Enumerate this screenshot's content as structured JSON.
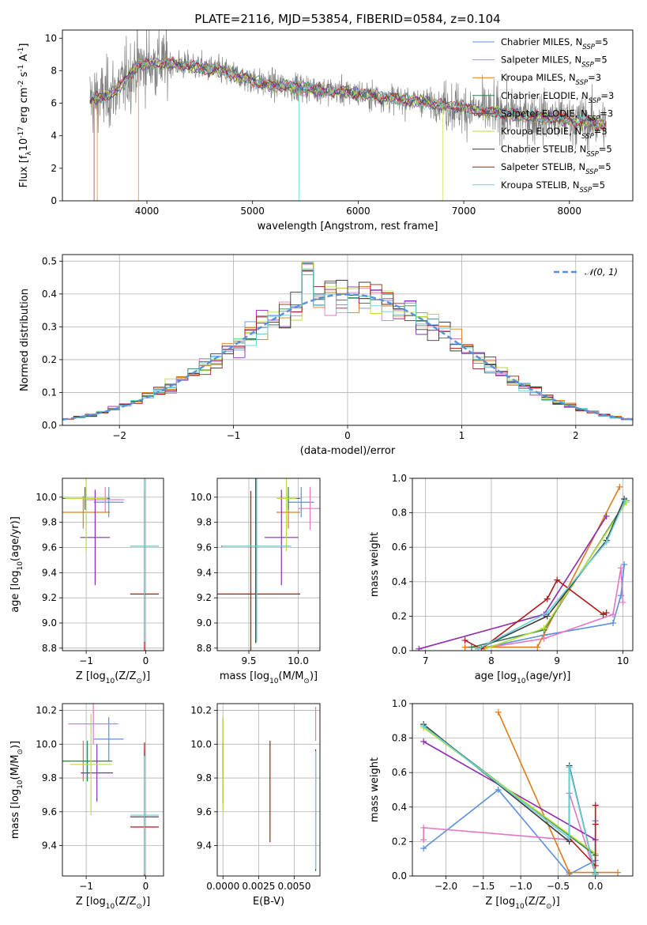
{
  "figure": {
    "title": "PLATE=2116, MJD=53854, FIBERID=0584, z=0.104",
    "series_colors": {
      "Chabrier MILES": "#5b8fde",
      "Salpeter MILES": "#e377c2",
      "Kroupa MILES": "#e07b1a",
      "Chabrier ELODIE": "#2f7d57",
      "Salpeter ELODIE": "#8e2bb0",
      "Kroupa ELODIE": "#b8de3a",
      "Chabrier STELIB": "#3a3a3a",
      "Salpeter STELIB": "#b01818",
      "Kroupa STELIB": "#63d2d8",
      "data": "#808080",
      "normal": "#5b8fde"
    }
  },
  "chart_data": [
    {
      "id": "spectrum",
      "type": "line",
      "xlabel": "wavelength [Angstrom, rest frame]",
      "ylabel": "Flux [f$_\\lambda$10$^{-17}$ erg cm$^{-2}$ s$^{-1}$ A$^{-1}$]",
      "xlim": [
        3200,
        8600
      ],
      "ylim": [
        0,
        10.5
      ],
      "xticks": [
        "4000",
        "5000",
        "6000",
        "7000",
        "8000"
      ],
      "yticks": [
        "0",
        "2",
        "4",
        "6",
        "8",
        "10"
      ],
      "legend": [
        "Chabrier MILES, N_SSP=5",
        "Salpeter MILES, N_SSP=5",
        "Kroupa MILES, N_SSP=3",
        "Chabrier ELODIE, N_SSP=3",
        "Salpeter ELODIE, N_SSP=3",
        "Kroupa ELODIE, N_SSP=3",
        "Chabrier STELIB, N_SSP=5",
        "Salpeter STELIB, N_SSP=5",
        "Kroupa STELIB, N_SSP=5"
      ],
      "legend_loc": "upper-right",
      "continuum": [
        [
          3450,
          6.2
        ],
        [
          3600,
          6.4
        ],
        [
          3750,
          7.0
        ],
        [
          3900,
          8.3
        ],
        [
          4100,
          8.5
        ],
        [
          4400,
          8.3
        ],
        [
          4700,
          8.0
        ],
        [
          4900,
          7.6
        ],
        [
          5100,
          7.2
        ],
        [
          5400,
          7.0
        ],
        [
          5700,
          6.8
        ],
        [
          6000,
          6.6
        ],
        [
          6300,
          6.3
        ],
        [
          6600,
          6.1
        ],
        [
          6900,
          5.8
        ],
        [
          7200,
          5.5
        ],
        [
          7500,
          5.3
        ],
        [
          7800,
          5.1
        ],
        [
          8100,
          4.9
        ],
        [
          8350,
          4.7
        ]
      ]
    },
    {
      "id": "residuals",
      "type": "histogram",
      "xlabel": "(data-model)/error",
      "ylabel": "Normed distribution",
      "xlim": [
        -2.5,
        2.5
      ],
      "ylim": [
        0,
        0.52
      ],
      "xticks": [
        "−2",
        "−1",
        "0",
        "1",
        "2"
      ],
      "yticks": [
        "0.0",
        "0.1",
        "0.2",
        "0.3",
        "0.4",
        "0.5"
      ],
      "bin_width": 0.1,
      "legend": [
        "𝒩(0, 1)"
      ],
      "legend_loc": "upper-right"
    },
    {
      "id": "age-vs-Z",
      "type": "errorbar",
      "xlabel": "Z [log$_{10}$(Z/Z$_\\odot$)]",
      "ylabel": "age  [log$_{10}$(age/yr)]",
      "xlim": [
        -1.4,
        0.3
      ],
      "ylim": [
        8.78,
        10.15
      ],
      "xticks": [
        "−1",
        "0"
      ],
      "yticks": [
        "8.8",
        "9.0",
        "9.2",
        "9.4",
        "9.6",
        "9.8",
        "10.0"
      ],
      "points": [
        {
          "series": "Chabrier MILES",
          "x": -0.62,
          "y": 9.96,
          "xerr": 0.25,
          "yerr": 0.12
        },
        {
          "series": "Salpeter MILES",
          "x": -0.68,
          "y": 9.98,
          "xerr": 0.32,
          "yerr": 0.1
        },
        {
          "series": "Kroupa MILES",
          "x": -1.05,
          "y": 9.88,
          "xerr": 0.45,
          "yerr": 0.13
        },
        {
          "series": "Chabrier ELODIE",
          "x": -1.02,
          "y": 9.99,
          "xerr": 0.42,
          "yerr": 0.09
        },
        {
          "series": "Salpeter ELODIE",
          "x": -0.85,
          "y": 9.68,
          "xerr": 0.25,
          "yerr": 0.38
        },
        {
          "series": "Kroupa ELODIE",
          "x": -1.0,
          "y": 9.99,
          "xerr": 0.35,
          "yerr": 0.42
        },
        {
          "series": "Chabrier STELIB",
          "x": -0.02,
          "y": 9.61,
          "xerr": 0.24,
          "yerr": 0.77
        },
        {
          "series": "Salpeter STELIB",
          "x": -0.02,
          "y": 9.23,
          "xerr": 0.24,
          "yerr": 0.82
        },
        {
          "series": "Kroupa STELIB",
          "x": -0.02,
          "y": 9.61,
          "xerr": 0.24,
          "yerr": 0.76
        }
      ]
    },
    {
      "id": "age-vs-mass",
      "type": "errorbar",
      "xlabel": "mass [log$_{10}$(M/M$_\\odot$)]",
      "ylabel": "",
      "xlim": [
        9.18,
        10.22
      ],
      "ylim": [
        8.78,
        10.15
      ],
      "xticks": [
        "9.5",
        "10.0"
      ],
      "yticks": [
        "8.8",
        "9.0",
        "9.2",
        "9.4",
        "9.6",
        "9.8",
        "10.0"
      ],
      "points": [
        {
          "series": "Chabrier MILES",
          "x": 10.03,
          "y": 9.96,
          "xerr": 0.13,
          "yerr": 0.12
        },
        {
          "series": "Salpeter MILES",
          "x": 10.12,
          "y": 9.91,
          "xerr": 0.12,
          "yerr": 0.17
        },
        {
          "series": "Kroupa MILES",
          "x": 9.9,
          "y": 9.88,
          "xerr": 0.12,
          "yerr": 0.13
        },
        {
          "series": "Chabrier ELODIE",
          "x": 9.9,
          "y": 9.99,
          "xerr": 0.12,
          "yerr": 0.09
        },
        {
          "series": "Salpeter ELODIE",
          "x": 9.83,
          "y": 9.68,
          "xerr": 0.17,
          "yerr": 0.38
        },
        {
          "series": "Kroupa ELODIE",
          "x": 9.88,
          "y": 9.99,
          "xerr": 0.1,
          "yerr": 0.42
        },
        {
          "series": "Chabrier STELIB",
          "x": 9.57,
          "y": 9.61,
          "xerr": 0.35,
          "yerr": 0.77
        },
        {
          "series": "Salpeter STELIB",
          "x": 9.52,
          "y": 9.23,
          "xerr": 0.5,
          "yerr": 0.82
        },
        {
          "series": "Kroupa STELIB",
          "x": 9.58,
          "y": 9.61,
          "xerr": 0.35,
          "yerr": 0.76
        }
      ]
    },
    {
      "id": "weight-vs-age",
      "type": "line",
      "xlabel": "age  [log$_{10}$(age/yr)]",
      "ylabel": "mass weight",
      "xlim": [
        6.8,
        10.15
      ],
      "ylim": [
        0,
        1.0
      ],
      "xticks": [
        "7",
        "8",
        "9",
        "10"
      ],
      "yticks": [
        "0.0",
        "0.2",
        "0.4",
        "0.6",
        "0.8",
        "1.0"
      ],
      "series": [
        {
          "series": "Chabrier MILES",
          "x": [
            7.8,
            8.8,
            9.85,
            9.97,
            10.02
          ],
          "y": [
            0.01,
            0.09,
            0.16,
            0.32,
            0.5
          ]
        },
        {
          "series": "Salpeter MILES",
          "x": [
            7.8,
            8.8,
            9.85,
            9.97,
            10.0
          ],
          "y": [
            0.01,
            0.07,
            0.21,
            0.48,
            0.28
          ]
        },
        {
          "series": "Kroupa MILES",
          "x": [
            7.6,
            8.7,
            9.95
          ],
          "y": [
            0.02,
            0.02,
            0.95
          ]
        },
        {
          "series": "Chabrier ELODIE",
          "x": [
            7.7,
            8.8,
            10.05
          ],
          "y": [
            0.02,
            0.12,
            0.87
          ]
        },
        {
          "series": "Salpeter ELODIE",
          "x": [
            6.9,
            8.8,
            9.75
          ],
          "y": [
            0.01,
            0.21,
            0.78
          ]
        },
        {
          "series": "Kroupa ELODIE",
          "x": [
            7.9,
            8.8,
            10.05
          ],
          "y": [
            0.01,
            0.13,
            0.86
          ]
        },
        {
          "series": "Chabrier STELIB",
          "x": [
            7.8,
            8.85,
            9.75,
            10.02
          ],
          "y": [
            0.01,
            0.2,
            0.64,
            0.88
          ]
        },
        {
          "series": "Salpeter STELIB",
          "x": [
            7.6,
            7.85,
            8.85,
            9.0,
            9.7,
            9.75
          ],
          "y": [
            0.06,
            0.01,
            0.3,
            0.41,
            0.21,
            0.22
          ]
        },
        {
          "series": "Kroupa STELIB",
          "x": [
            7.8,
            8.85,
            9.75,
            10.03
          ],
          "y": [
            0.01,
            0.22,
            0.63,
            0.87
          ]
        }
      ]
    },
    {
      "id": "mass-vs-Z",
      "type": "errorbar",
      "xlabel": "Z [log$_{10}$(Z/Z$_\\odot$)]",
      "ylabel": "mass [log$_{10}$(M/M$_\\odot$)]",
      "xlim": [
        -1.4,
        0.3
      ],
      "ylim": [
        9.22,
        10.24
      ],
      "xticks": [
        "−1",
        "0"
      ],
      "yticks": [
        "9.4",
        "9.6",
        "9.8",
        "10.0",
        "10.2"
      ],
      "points": [
        {
          "series": "Chabrier MILES",
          "x": -0.62,
          "y": 10.03,
          "xerr": 0.25,
          "yerr": 0.13
        },
        {
          "series": "Salpeter MILES",
          "x": -0.88,
          "y": 10.12,
          "xerr": 0.42,
          "yerr": 0.12
        },
        {
          "series": "Kroupa MILES",
          "x": -1.05,
          "y": 9.9,
          "xerr": 0.45,
          "yerr": 0.12
        },
        {
          "series": "Chabrier ELODIE",
          "x": -0.98,
          "y": 9.9,
          "xerr": 0.42,
          "yerr": 0.12
        },
        {
          "series": "Salpeter ELODIE",
          "x": -0.82,
          "y": 9.83,
          "xerr": 0.27,
          "yerr": 0.17
        },
        {
          "series": "Kroupa ELODIE",
          "x": -0.92,
          "y": 9.88,
          "xerr": 0.35,
          "yerr": 0.3
        },
        {
          "series": "Chabrier STELIB",
          "x": -0.02,
          "y": 9.57,
          "xerr": 0.24,
          "yerr": 0.4
        },
        {
          "series": "Salpeter STELIB",
          "x": -0.02,
          "y": 9.51,
          "xerr": 0.24,
          "yerr": 0.5
        },
        {
          "series": "Kroupa STELIB",
          "x": -0.02,
          "y": 9.58,
          "xerr": 0.24,
          "yerr": 0.35
        }
      ]
    },
    {
      "id": "mass-vs-EBV",
      "type": "errorbar",
      "xlabel": "E(B-V)",
      "ylabel": "",
      "xlim": [
        -0.0004,
        0.0068
      ],
      "ylim": [
        9.22,
        10.24
      ],
      "xticks": [
        "0.0000",
        "0.0025",
        "0.0050"
      ],
      "yticks": [
        "9.4",
        "9.6",
        "9.8",
        "10.0",
        "10.2"
      ],
      "points": [
        {
          "series": "Chabrier MILES",
          "x": 0.0,
          "y": 10.03,
          "xerr": 0,
          "yerr": 0.12
        },
        {
          "series": "Salpeter MILES",
          "x": 0.0065,
          "y": 10.12,
          "xerr": 0,
          "yerr": 0.1
        },
        {
          "series": "Kroupa MILES",
          "x": 0.0,
          "y": 9.9,
          "xerr": 0,
          "yerr": 0.12
        },
        {
          "series": "Chabrier ELODIE",
          "x": 0.0,
          "y": 9.9,
          "xerr": 0,
          "yerr": 0.1
        },
        {
          "series": "Salpeter ELODIE",
          "x": 0.0,
          "y": 9.83,
          "xerr": 0,
          "yerr": 0.18
        },
        {
          "series": "Kroupa ELODIE",
          "x": 0.0,
          "y": 9.88,
          "xerr": 0,
          "yerr": 0.28
        },
        {
          "series": "Chabrier STELIB",
          "x": 0.0065,
          "y": 9.61,
          "xerr": 0,
          "yerr": 0.36
        },
        {
          "series": "Salpeter STELIB",
          "x": 0.0033,
          "y": 9.72,
          "xerr": 0,
          "yerr": 0.3
        },
        {
          "series": "Kroupa STELIB",
          "x": 0.0065,
          "y": 9.61,
          "xerr": 0,
          "yerr": 0.35
        }
      ]
    },
    {
      "id": "weight-vs-Z",
      "type": "line",
      "xlabel": "Z [log$_{10}$(Z/Z$_\\odot$)]",
      "ylabel": "mass weight",
      "xlim": [
        -2.45,
        0.5
      ],
      "ylim": [
        0,
        1.0
      ],
      "xticks": [
        "−2.0",
        "−1.5",
        "−1.0",
        "−0.5",
        "0.0"
      ],
      "yticks": [
        "0.0",
        "0.2",
        "0.4",
        "0.6",
        "0.8",
        "1.0"
      ],
      "series": [
        {
          "series": "Chabrier MILES",
          "x": [
            -2.3,
            -1.3,
            -0.35,
            0.0,
            0.0
          ],
          "y": [
            0.16,
            0.5,
            0.01,
            0.09,
            0.32
          ]
        },
        {
          "series": "Salpeter MILES",
          "x": [
            -2.3,
            -2.3,
            -0.35,
            -0.35,
            0.0
          ],
          "y": [
            0.21,
            0.28,
            0.21,
            0.48,
            0.01
          ]
        },
        {
          "series": "Kroupa MILES",
          "x": [
            -1.3,
            -0.35,
            0.3
          ],
          "y": [
            0.95,
            0.02,
            0.02
          ]
        },
        {
          "series": "Chabrier ELODIE",
          "x": [
            -2.3,
            0.0,
            0.0
          ],
          "y": [
            0.87,
            0.12,
            0.02
          ]
        },
        {
          "series": "Salpeter ELODIE",
          "x": [
            -2.3,
            0.0,
            0.0
          ],
          "y": [
            0.78,
            0.21,
            0.01
          ]
        },
        {
          "series": "Kroupa ELODIE",
          "x": [
            -2.3,
            0.0,
            0.0
          ],
          "y": [
            0.86,
            0.13,
            0.01
          ]
        },
        {
          "series": "Chabrier STELIB",
          "x": [
            -2.3,
            -0.35,
            -0.35,
            0.0
          ],
          "y": [
            0.88,
            0.2,
            0.64,
            0.01
          ]
        },
        {
          "series": "Salpeter STELIB",
          "x": [
            -0.35,
            0.0,
            0.0,
            0.0
          ],
          "y": [
            0.22,
            0.06,
            0.41,
            0.3
          ]
        },
        {
          "series": "Kroupa STELIB",
          "x": [
            -2.3,
            -0.35,
            -0.35,
            0.0
          ],
          "y": [
            0.87,
            0.22,
            0.63,
            0.01
          ]
        }
      ]
    }
  ]
}
